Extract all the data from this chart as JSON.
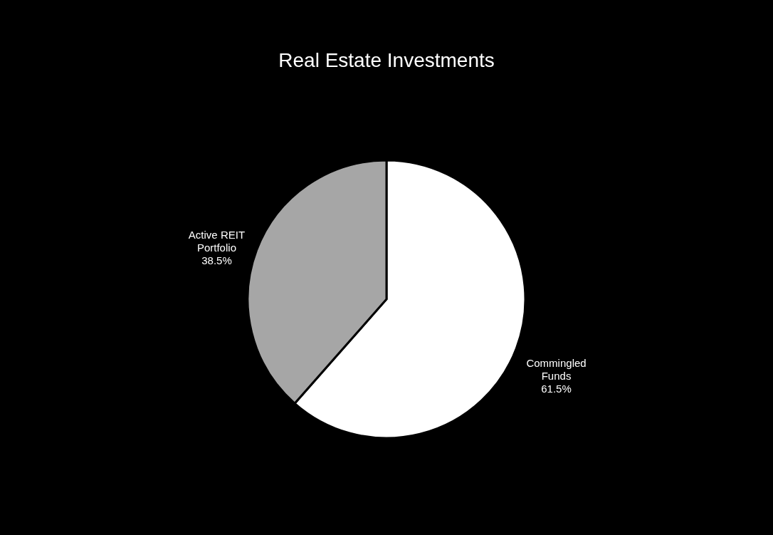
{
  "chart_data": {
    "type": "pie",
    "title": "Real Estate Investments",
    "categories": [
      "Commingled Funds",
      "Active REIT Portfolio"
    ],
    "values": [
      61.5,
      38.5
    ],
    "colors": [
      "#ffffff",
      "#a6a6a6"
    ],
    "value_labels": [
      "61.5%",
      "38.5%"
    ]
  }
}
